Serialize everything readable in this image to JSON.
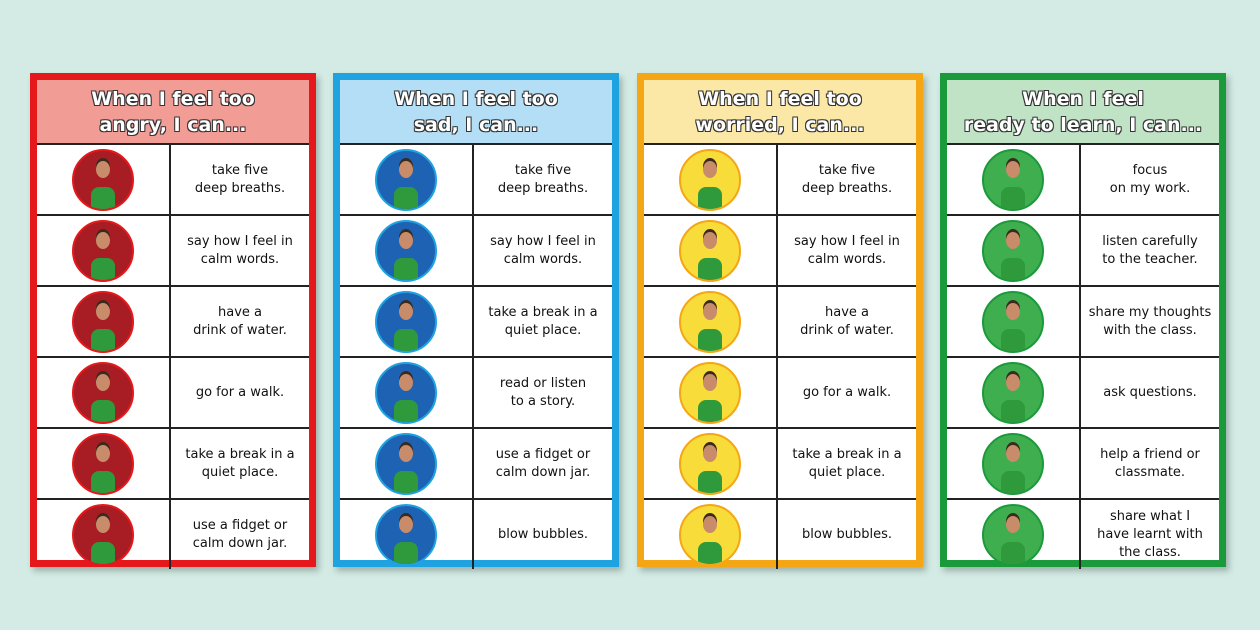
{
  "cards": [
    {
      "title": "When I feel too\nangry, I can...",
      "border": "#e5191b",
      "header": "#f29c96",
      "circle": "#a71d23",
      "items": [
        "take five\ndeep breaths.",
        "say how I feel in\ncalm words.",
        "have a\ndrink of water.",
        "go for a walk.",
        "take a break in a\nquiet place.",
        "use a fidget or\ncalm down jar."
      ]
    },
    {
      "title": "When I feel too\nsad, I can...",
      "border": "#1fa3e0",
      "header": "#b3def5",
      "circle": "#1e63b3",
      "items": [
        "take five\ndeep breaths.",
        "say how I feel in\ncalm words.",
        "take a break in a\nquiet place.",
        "read or listen\nto a story.",
        "use a fidget or\ncalm down jar.",
        "blow bubbles."
      ]
    },
    {
      "title": "When I feel too\nworried, I can...",
      "border": "#f5a614",
      "header": "#fbe7a6",
      "circle": "#f7dc3a",
      "items": [
        "take five\ndeep breaths.",
        "say how I feel in\ncalm words.",
        "have a\ndrink of water.",
        "go for a walk.",
        "take a break in a\nquiet place.",
        "blow bubbles."
      ]
    },
    {
      "title": "When I feel\nready to learn, I can...",
      "border": "#1b9a3b",
      "header": "#bfe3c4",
      "circle": "#3fae4f",
      "items": [
        "focus\non my work.",
        "listen carefully\nto the teacher.",
        "share my thoughts\nwith the class.",
        "ask questions.",
        "help a friend or\nclassmate.",
        "share what I\nhave learnt with\nthe class."
      ]
    }
  ]
}
